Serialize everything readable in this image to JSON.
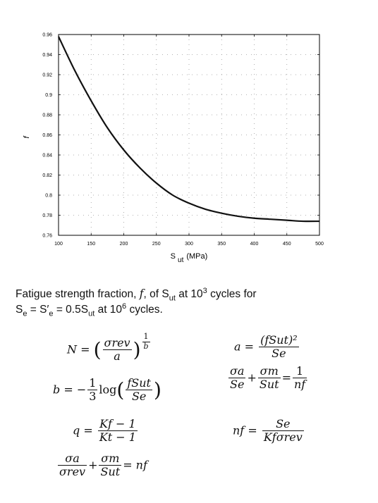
{
  "chart_data": {
    "type": "line",
    "title": "",
    "xlabel": "S",
    "xlabel_sub": "ut",
    "xlabel_unit": "(MPa)",
    "ylabel": "f",
    "xlim": [
      100,
      500
    ],
    "ylim": [
      0.76,
      0.96
    ],
    "xticks": [
      100,
      150,
      200,
      250,
      300,
      350,
      400,
      450,
      500
    ],
    "yticks": [
      0.76,
      0.78,
      0.8,
      0.82,
      0.84,
      0.86,
      0.88,
      0.9,
      0.92,
      0.94,
      0.96
    ],
    "ytick_labels": [
      "0.76",
      "0.78",
      "0.8",
      "0.82",
      "0.84",
      "0.86",
      "0.88",
      "0.9",
      "0.92",
      "0.94",
      "0.96"
    ],
    "grid": "dotted",
    "series": [
      {
        "x": [
          100,
          125,
          150,
          175,
          200,
          225,
          250,
          275,
          300,
          325,
          350,
          375,
          400,
          425,
          450,
          475,
          500
        ],
        "y": [
          0.958,
          0.924,
          0.894,
          0.867,
          0.845,
          0.827,
          0.812,
          0.8,
          0.792,
          0.786,
          0.782,
          0.779,
          0.777,
          0.776,
          0.775,
          0.774,
          0.774
        ],
        "color": "#111111"
      }
    ]
  },
  "caption": {
    "line1_pre": "Fatigue strength fraction, ",
    "f": "f",
    "line1_mid": ", of S",
    "ut": "ut",
    "line1_post": " at 10",
    "exp3": "3",
    "line1_end": " cycles for",
    "line2_a": "S",
    "line2_e": "e",
    "line2_b": " = S′",
    "line2_c": " = 0.5S",
    "line2_d": " at 10",
    "exp6": "6",
    "line2_end": " cycles."
  },
  "equations": {
    "eq1": {
      "lhs": "N = ",
      "num": "σrev",
      "den": "a",
      "exp_num": "1",
      "exp_den": "b"
    },
    "eq2": {
      "lhs": "a = ",
      "num": "(fSut)²",
      "den": "Se"
    },
    "eq3": {
      "lhs": "b = −",
      "coef_num": "1",
      "coef_den": "3",
      "log": "log",
      "num": "fSut",
      "den": "Se"
    },
    "eq4": {
      "t1_num": "σa",
      "t1_den": "Se",
      "plus": "+",
      "t2_num": "σm",
      "t2_den": "Sut",
      "eq": "=",
      "r_num": "1",
      "r_den": "nf"
    },
    "eq5": {
      "lhs": "q = ",
      "num": "Kf − 1",
      "den": "Kt − 1"
    },
    "eq6": {
      "lhs": "nf = ",
      "num": "Se",
      "den": "Kfσrev"
    },
    "eq7": {
      "t1_num": "σa",
      "t1_den": "σrev",
      "plus": "+",
      "t2_num": "σm",
      "t2_den": "Sut",
      "rhs": "= nf"
    }
  }
}
